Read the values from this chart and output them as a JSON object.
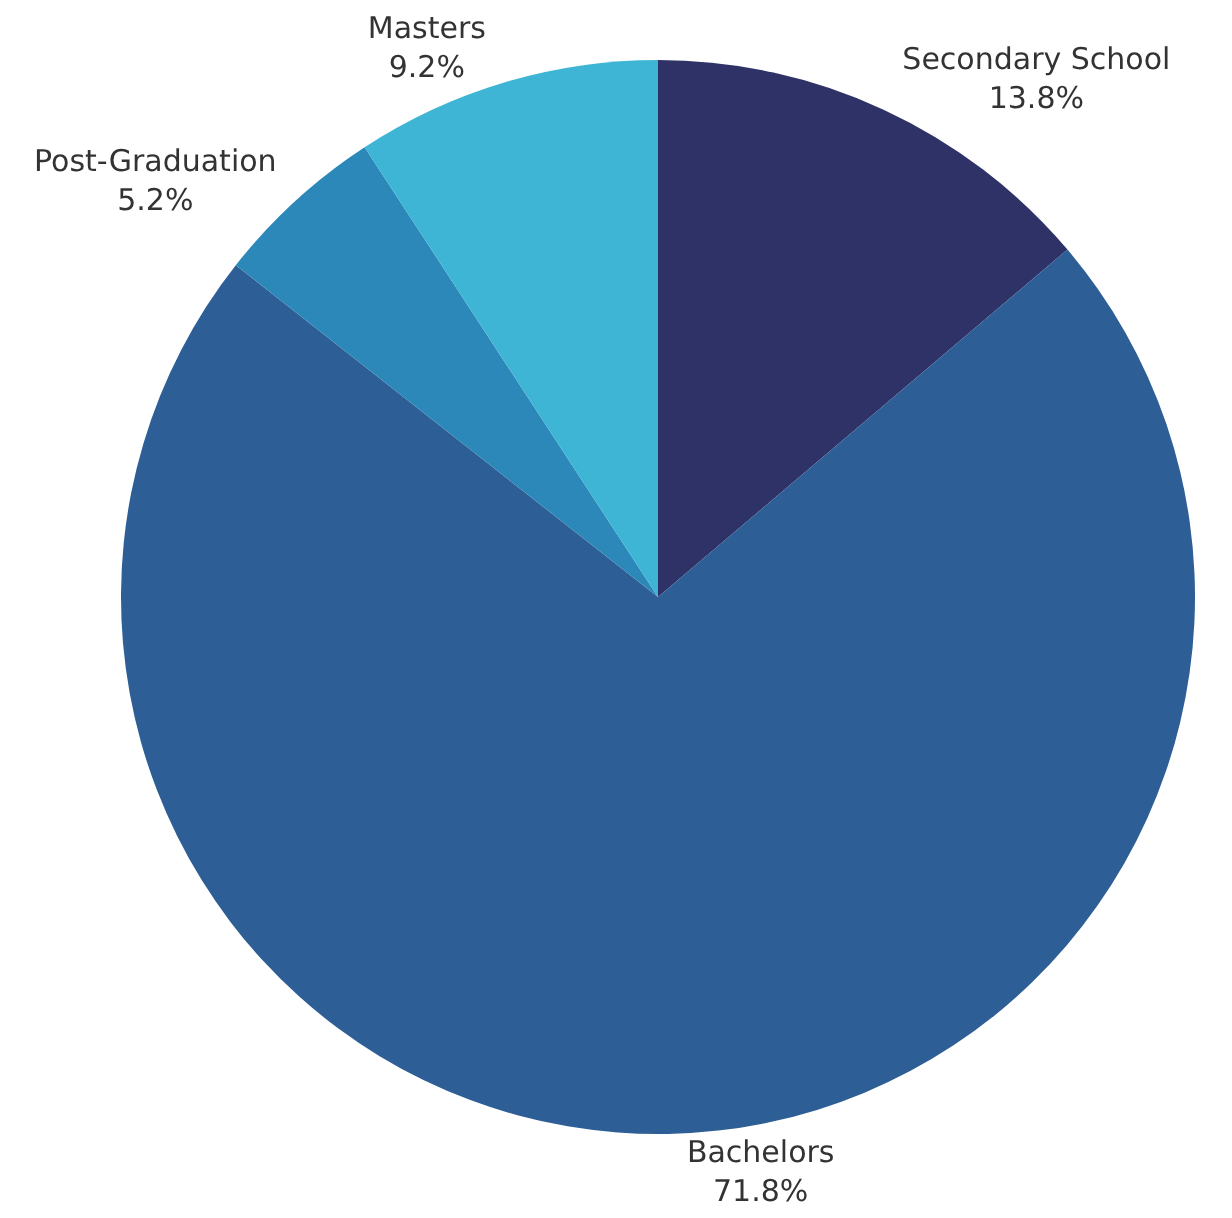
{
  "chart_data": {
    "type": "pie",
    "categories": [
      "Secondary School",
      "Bachelors",
      "Post-Graduation",
      "Masters"
    ],
    "values": [
      13.8,
      71.8,
      5.2,
      9.2
    ],
    "colors": [
      "#2e3267",
      "#2d5e96",
      "#2b88b8",
      "#3fb5d5"
    ],
    "value_labels": [
      "13.8%",
      "71.8%",
      "5.2%",
      "9.2%"
    ]
  }
}
